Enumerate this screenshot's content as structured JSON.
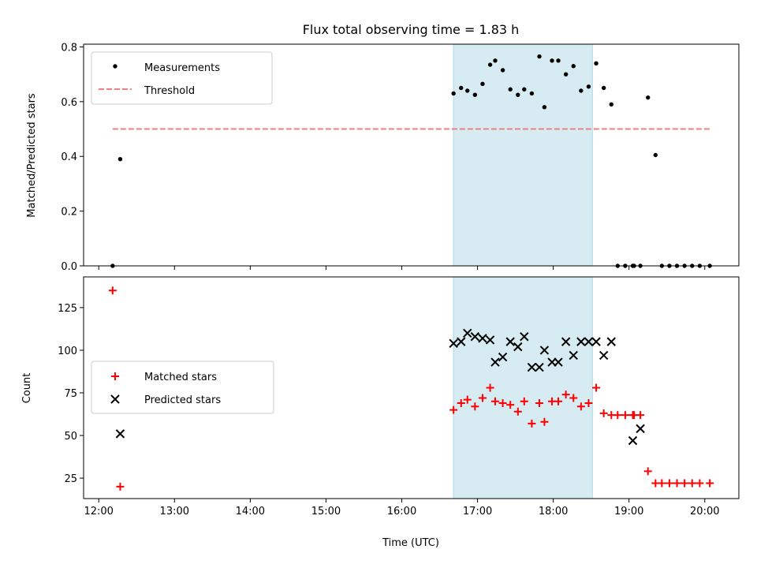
{
  "figure": {
    "title": "Flux total observing time = 1.83 h",
    "colors": {
      "threshold": "#f08080",
      "matched": "#ff0000",
      "predicted": "#000000",
      "measurements": "#000000",
      "span": "#add8e6"
    }
  },
  "chart_data": [
    {
      "type": "scatter",
      "ylabel": "Matched/Predicted stars",
      "xlabel": "",
      "xlim": [
        "11:48",
        "20:27"
      ],
      "ylim": [
        0,
        0.81
      ],
      "yticks": [
        0.0,
        0.2,
        0.4,
        0.6,
        0.8
      ],
      "ytick_labels": [
        "0.0",
        "0.2",
        "0.4",
        "0.6",
        "0.8"
      ],
      "highlight_span": [
        "16:41",
        "18:31"
      ],
      "legend": {
        "location": "upper-left",
        "entries": [
          "Measurements",
          "Threshold"
        ]
      },
      "series": [
        {
          "name": "Measurements",
          "marker": "dot",
          "x": [
            "12:11",
            "12:17",
            "16:41",
            "16:47",
            "16:52",
            "16:58",
            "17:04",
            "17:10",
            "17:14",
            "17:20",
            "17:26",
            "17:32",
            "17:37",
            "17:43",
            "17:49",
            "17:53",
            "17:59",
            "18:04",
            "18:10",
            "18:16",
            "18:22",
            "18:28",
            "18:34",
            "18:40",
            "18:46",
            "18:51",
            "18:57",
            "19:03",
            "19:04",
            "19:09",
            "19:15",
            "19:21",
            "19:26",
            "19:32",
            "19:38",
            "19:44",
            "19:50",
            "19:56",
            "20:04"
          ],
          "y": [
            0.0,
            0.39,
            0.63,
            0.65,
            0.64,
            0.625,
            0.665,
            0.735,
            0.75,
            0.715,
            0.645,
            0.625,
            0.645,
            0.63,
            0.765,
            0.58,
            0.75,
            0.75,
            0.7,
            0.73,
            0.64,
            0.655,
            0.74,
            0.65,
            0.59,
            0.0,
            0.0,
            0.0,
            0.0,
            0.0,
            0.615,
            0.405,
            0.0,
            0.0,
            0.0,
            0.0,
            0.0,
            0.0,
            0.0
          ]
        },
        {
          "name": "Threshold",
          "line_style": "dashed",
          "x": [
            "12:11",
            "20:04"
          ],
          "y": [
            0.5,
            0.5
          ]
        }
      ]
    },
    {
      "type": "scatter",
      "ylabel": "Count",
      "xlabel": "Time (UTC)",
      "xlim": [
        "11:48",
        "20:27"
      ],
      "ylim": [
        13,
        143
      ],
      "xticks": [
        "12:00",
        "13:00",
        "14:00",
        "15:00",
        "16:00",
        "17:00",
        "18:00",
        "19:00",
        "20:00"
      ],
      "yticks": [
        25,
        50,
        75,
        100,
        125
      ],
      "ytick_labels": [
        "25",
        "50",
        "75",
        "100",
        "125"
      ],
      "highlight_span": [
        "16:41",
        "18:31"
      ],
      "legend": {
        "location": "center-left",
        "entries": [
          "Matched stars",
          "Predicted stars"
        ]
      },
      "series": [
        {
          "name": "Matched stars",
          "marker": "plus",
          "x": [
            "12:11",
            "12:17",
            "16:41",
            "16:47",
            "16:52",
            "16:58",
            "17:04",
            "17:10",
            "17:14",
            "17:20",
            "17:26",
            "17:32",
            "17:37",
            "17:43",
            "17:49",
            "17:53",
            "17:59",
            "18:04",
            "18:10",
            "18:16",
            "18:22",
            "18:28",
            "18:34",
            "18:40",
            "18:46",
            "18:51",
            "18:57",
            "19:03",
            "19:04",
            "19:09",
            "19:15",
            "19:21",
            "19:26",
            "19:32",
            "19:38",
            "19:44",
            "19:50",
            "19:56",
            "20:04"
          ],
          "y": [
            135,
            20,
            65,
            69,
            71,
            67,
            72,
            78,
            70,
            69,
            68,
            64,
            70,
            57,
            69,
            58,
            70,
            70,
            74,
            72,
            67,
            69,
            78,
            63,
            62,
            62,
            62,
            62,
            62,
            62,
            29,
            22,
            22,
            22,
            22,
            22,
            22,
            22,
            22
          ]
        },
        {
          "name": "Predicted stars",
          "marker": "x",
          "x": [
            "12:17",
            "16:41",
            "16:47",
            "16:52",
            "16:58",
            "17:04",
            "17:10",
            "17:14",
            "17:20",
            "17:26",
            "17:32",
            "17:37",
            "17:43",
            "17:49",
            "17:53",
            "17:59",
            "18:04",
            "18:10",
            "18:16",
            "18:22",
            "18:28",
            "18:34",
            "18:40",
            "18:46",
            "19:03",
            "19:09"
          ],
          "y": [
            51,
            104,
            105,
            110,
            108,
            107,
            106,
            93,
            96,
            105,
            102,
            108,
            90,
            90,
            100,
            93,
            93,
            105,
            97,
            105,
            105,
            105,
            97,
            105,
            47,
            54
          ]
        }
      ]
    }
  ]
}
